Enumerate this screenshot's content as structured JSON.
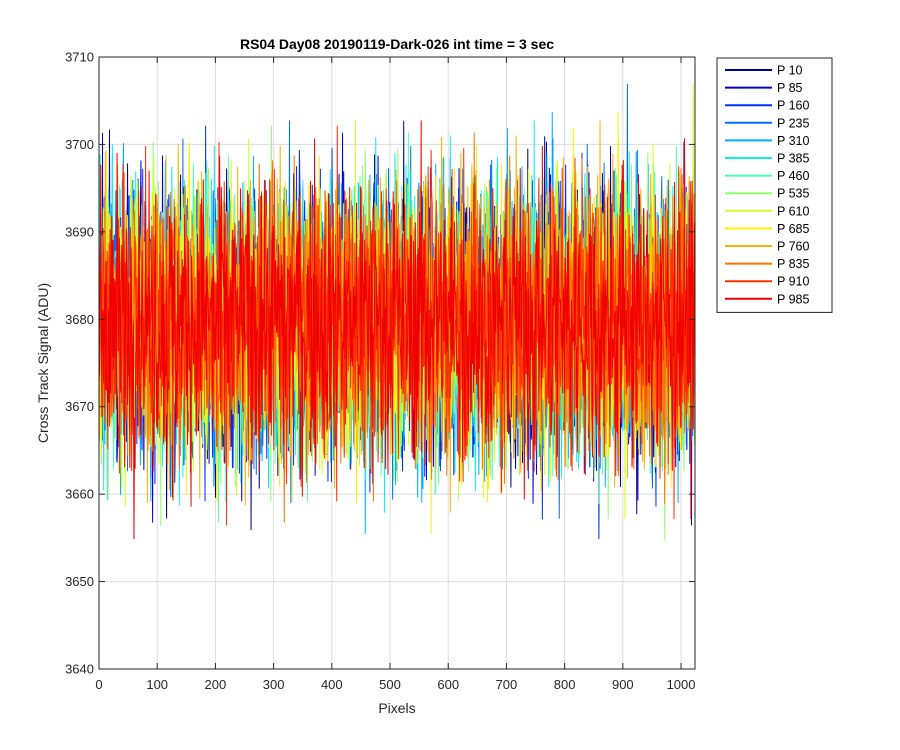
{
  "chart_data": {
    "type": "line",
    "title": "RS04 Day08 20190119-Dark-026 int time = 3 sec",
    "xlabel": "Pixels",
    "ylabel": "Cross Track Signal (ADU)",
    "xlim": [
      0,
      1024
    ],
    "ylim": [
      3640,
      3710
    ],
    "xticks": [
      0,
      100,
      200,
      300,
      400,
      500,
      600,
      700,
      800,
      900,
      1000
    ],
    "yticks": [
      3640,
      3650,
      3660,
      3670,
      3680,
      3690,
      3700,
      3710
    ],
    "grid": true,
    "legend_position": "outside-top-right",
    "noise_profile": {
      "mean": 3680,
      "typical_range": [
        3664,
        3697
      ],
      "extreme_range": [
        3647,
        3709
      ],
      "num_points": 1024
    },
    "series": [
      {
        "name": "P 10",
        "color": "#00008F"
      },
      {
        "name": "P 85",
        "color": "#0000D0"
      },
      {
        "name": "P 160",
        "color": "#0030FF"
      },
      {
        "name": "P 235",
        "color": "#0070FF"
      },
      {
        "name": "P 310",
        "color": "#00AFFF"
      },
      {
        "name": "P 385",
        "color": "#10EFEF"
      },
      {
        "name": "P 460",
        "color": "#50FFAF"
      },
      {
        "name": "P 535",
        "color": "#8FFF70"
      },
      {
        "name": "P 610",
        "color": "#CFFF30"
      },
      {
        "name": "P 685",
        "color": "#FFF000"
      },
      {
        "name": "P 760",
        "color": "#FFB000"
      },
      {
        "name": "P 835",
        "color": "#FF7000"
      },
      {
        "name": "P 910",
        "color": "#FF3000"
      },
      {
        "name": "P 985",
        "color": "#F00000"
      }
    ]
  }
}
